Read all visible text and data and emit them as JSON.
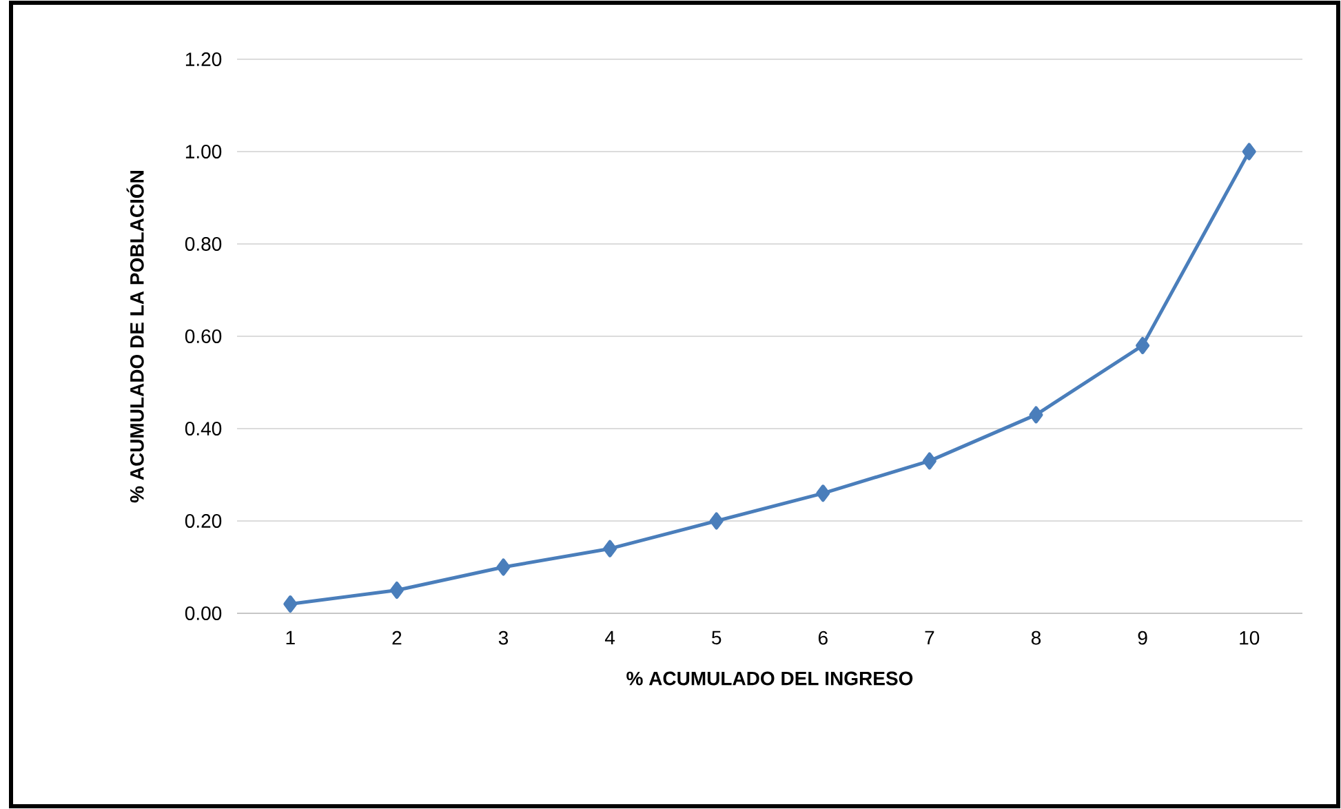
{
  "chart_data": {
    "type": "line",
    "xlabel": "% ACUMULADO DEL INGRESO",
    "ylabel": "% ACUMULADO DE LA POBLACIÓN",
    "categories": [
      "1",
      "2",
      "3",
      "4",
      "5",
      "6",
      "7",
      "8",
      "9",
      "10"
    ],
    "series": [
      {
        "color": "#4a7ebb",
        "values": [
          0.02,
          0.05,
          0.1,
          0.14,
          0.2,
          0.26,
          0.33,
          0.43,
          0.58,
          1.0
        ]
      }
    ],
    "ylim": [
      0,
      1.2
    ],
    "yticks": [
      {
        "value": 0,
        "label": "0.00"
      },
      {
        "value": 0.2,
        "label": "0.20"
      },
      {
        "value": 0.4,
        "label": "0.40"
      },
      {
        "value": 0.6,
        "label": "0.60"
      },
      {
        "value": 0.8,
        "label": "0.80"
      },
      {
        "value": 1.0,
        "label": "1.00"
      },
      {
        "value": 1.2,
        "label": "1.20"
      }
    ],
    "grid": "y",
    "marker": "diamond",
    "line_style": "solid"
  }
}
